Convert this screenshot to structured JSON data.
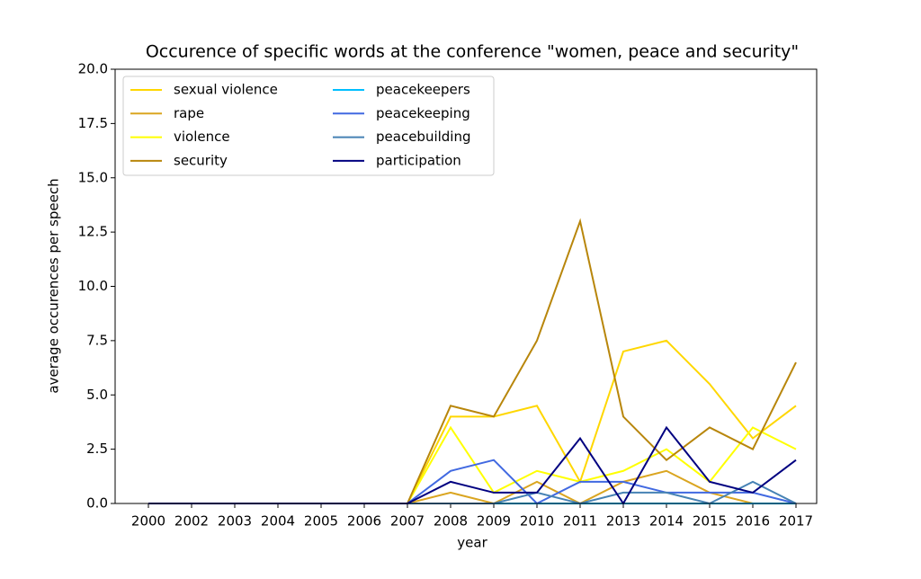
{
  "chart_data": {
    "type": "line",
    "title": "Occurence of specific words at the conference \"women, peace and security\"",
    "x_label": "year",
    "y_label": "average occurences per speech",
    "categories": [
      "2000",
      "2002",
      "2003",
      "2004",
      "2005",
      "2006",
      "2007",
      "2008",
      "2009",
      "2010",
      "2011",
      "2013",
      "2014",
      "2015",
      "2016",
      "2017"
    ],
    "ylim": [
      0,
      20
    ],
    "yticks": [
      {
        "value": 0,
        "label": "0.0"
      },
      {
        "value": 2.5,
        "label": "2.5"
      },
      {
        "value": 5,
        "label": "5.0"
      },
      {
        "value": 7.5,
        "label": "7.5"
      },
      {
        "value": 10,
        "label": "10.0"
      },
      {
        "value": 12.5,
        "label": "12.5"
      },
      {
        "value": 15,
        "label": "15.0"
      },
      {
        "value": 17.5,
        "label": "17.5"
      },
      {
        "value": 20,
        "label": "20.0"
      }
    ],
    "legend": "upper left",
    "series": [
      {
        "name": "sexual violence",
        "color": "#ffd700",
        "values": [
          0,
          0,
          0,
          0,
          0,
          0,
          0,
          4,
          4,
          4.5,
          1,
          7,
          7.5,
          5.5,
          3,
          4.5
        ]
      },
      {
        "name": "rape",
        "color": "#daa520",
        "values": [
          0,
          0,
          0,
          0,
          0,
          0,
          0,
          0.5,
          0,
          1,
          0,
          1,
          1.5,
          0.5,
          0,
          0
        ]
      },
      {
        "name": "violence",
        "color": "#ffff00",
        "values": [
          0,
          0,
          0,
          0,
          0,
          0,
          0,
          3.5,
          0.5,
          1.5,
          1,
          1.5,
          2.5,
          1,
          3.5,
          2.5
        ]
      },
      {
        "name": "security",
        "color": "#b8860b",
        "values": [
          0,
          0,
          0,
          0,
          0,
          0,
          0,
          4.5,
          4,
          7.5,
          13,
          4,
          2,
          3.5,
          2.5,
          6.5
        ]
      },
      {
        "name": "peacekeepers",
        "color": "#00bfff",
        "values": [
          0,
          0,
          0,
          0,
          0,
          0,
          0,
          0,
          0,
          0,
          0,
          0,
          0,
          0,
          0,
          0
        ]
      },
      {
        "name": "peacekeeping",
        "color": "#4169e1",
        "values": [
          0,
          0,
          0,
          0,
          0,
          0,
          0,
          1.5,
          2,
          0,
          1,
          1,
          0.5,
          0.5,
          0.5,
          0
        ]
      },
      {
        "name": "peacebuilding",
        "color": "#4682b4",
        "values": [
          0,
          0,
          0,
          0,
          0,
          0,
          0,
          0,
          0,
          0.5,
          0,
          0.5,
          0.5,
          0,
          1,
          0
        ]
      },
      {
        "name": "participation",
        "color": "#000080",
        "values": [
          0,
          0,
          0,
          0,
          0,
          0,
          0,
          1,
          0.5,
          0.5,
          3,
          0,
          3.5,
          1,
          0.5,
          2
        ]
      }
    ]
  }
}
